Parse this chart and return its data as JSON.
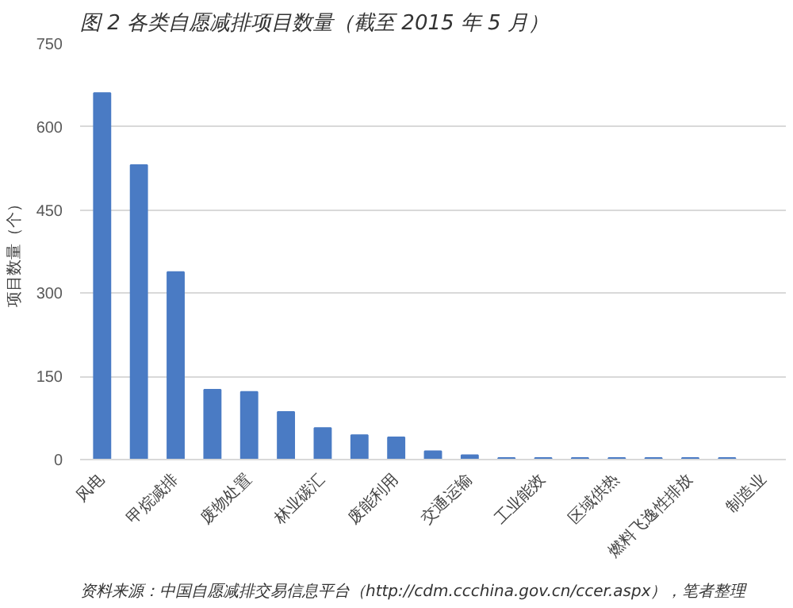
{
  "chart_data": {
    "type": "bar",
    "title": "图 2  各类自愿减排项目数量（截至 2015 年 5 月）",
    "ylabel": "项目数量（个）",
    "categories": [
      "风电",
      null,
      "甲烷减排",
      null,
      "废物处置",
      null,
      "林业碳汇",
      null,
      "废能利用",
      null,
      "交通运输",
      null,
      "工业能效",
      null,
      "区域供热",
      null,
      "燃料飞逸性排放",
      null,
      "制造业"
    ],
    "values": [
      661,
      531,
      338,
      126,
      122,
      86,
      57,
      44,
      40,
      15,
      8,
      3,
      3,
      3,
      3,
      3,
      3,
      3,
      null
    ],
    "color": "#4a7bc4",
    "ylim": [
      0,
      750
    ],
    "yticks": [
      0,
      150,
      300,
      450,
      600,
      750
    ],
    "grid": "y",
    "annotations": [
      "资料来源：中国自愿减排交易信息平台（http://cdm.ccchina.gov.cn/ccer.aspx），笔者整理"
    ]
  }
}
